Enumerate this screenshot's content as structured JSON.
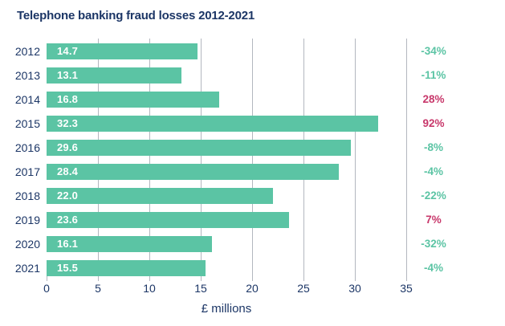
{
  "chart_data": {
    "type": "bar",
    "orientation": "horizontal",
    "title": "Telephone banking fraud losses 2012-2021",
    "categories": [
      "2012",
      "2013",
      "2014",
      "2015",
      "2016",
      "2017",
      "2018",
      "2019",
      "2020",
      "2021"
    ],
    "values": [
      14.7,
      13.1,
      16.8,
      32.3,
      29.6,
      28.4,
      22.0,
      23.6,
      16.1,
      15.5
    ],
    "value_labels": [
      "14.7",
      "13.1",
      "16.8",
      "32.3",
      "29.6",
      "28.4",
      "22.0",
      "23.6",
      "16.1",
      "15.5"
    ],
    "change_labels": [
      "-34%",
      "-11%",
      "28%",
      "92%",
      "-8%",
      "-4%",
      "-22%",
      "7%",
      "-32%",
      "-4%"
    ],
    "change_directions": [
      "down",
      "down",
      "up",
      "up",
      "down",
      "down",
      "down",
      "up",
      "down",
      "down"
    ],
    "xlabel": "£ millions",
    "x_ticks": [
      0,
      5,
      10,
      15,
      20,
      25,
      30,
      35
    ],
    "xlim": [
      0,
      35
    ],
    "grid": "vertical-gridlines",
    "legend": "none",
    "colors": {
      "bar": "#5bc4a4",
      "decrease_text": "#5bc4a4",
      "increase_text": "#c8386b",
      "axis_text": "#1c3666",
      "title_text": "#1c3666",
      "bar_value_text": "#ffffff",
      "gridline": "#b3b7bf",
      "background": "#ffffff"
    }
  }
}
